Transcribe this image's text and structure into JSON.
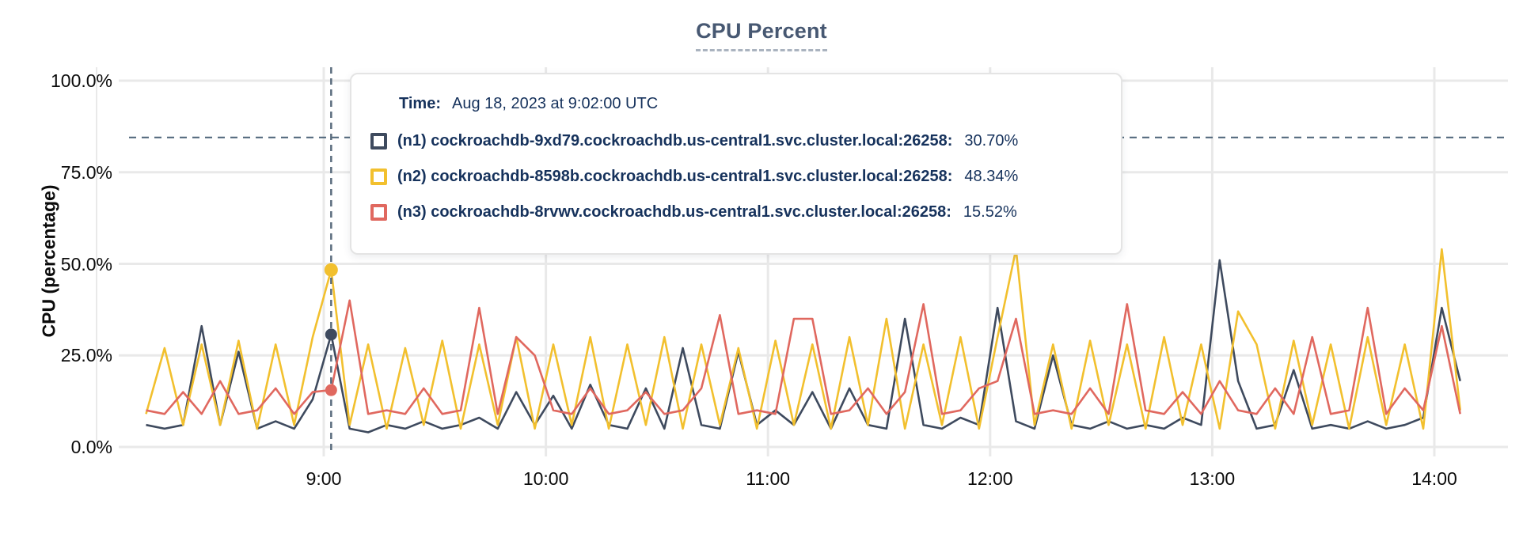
{
  "title": "CPU Percent",
  "y_axis_title": "CPU (percentage)",
  "colors": {
    "n1": "#3e4a5e",
    "n2": "#f2c02e",
    "n3": "#e0685f",
    "grid": "#e9e9e9",
    "dashed_guide": "#4d6478",
    "cursor": "#5b6d7e",
    "text": "#16325c",
    "title": "#475872"
  },
  "tooltip": {
    "time_label": "Time:",
    "time_value": "Aug 18, 2023 at 9:02:00 UTC",
    "rows": [
      {
        "label": "(n1) cockroachdb-9xd79.cockroachdb.us-central1.svc.cluster.local:26258:",
        "value": "30.70%",
        "color": "#3e4a5e"
      },
      {
        "label": "(n2) cockroachdb-8598b.cockroachdb.us-central1.svc.cluster.local:26258:",
        "value": "48.34%",
        "color": "#f2c02e"
      },
      {
        "label": "(n3) cockroachdb-8rvwv.cockroachdb.us-central1.svc.cluster.local:26258:",
        "value": "15.52%",
        "color": "#e0685f"
      }
    ]
  },
  "chart_data": {
    "type": "line",
    "title": "CPU Percent",
    "xlabel": "",
    "ylabel": "CPU (percentage)",
    "ylim": [
      0,
      100
    ],
    "grid": true,
    "legend_position": "tooltip-overlay",
    "y_ticks": [
      "0.0%",
      "25.0%",
      "50.0%",
      "75.0%",
      "100.0%"
    ],
    "y_tick_values": [
      0,
      25,
      50,
      75,
      100
    ],
    "x_ticks": [
      "9:00",
      "10:00",
      "11:00",
      "12:00",
      "13:00",
      "14:00"
    ],
    "x_tick_hours": [
      9,
      10,
      11,
      12,
      13,
      14
    ],
    "x_range_hours": [
      8.2,
      14.117
    ],
    "sample_start_hour": 8.2,
    "sample_step_minutes": 5,
    "threshold_percent": 84.5,
    "cursor": {
      "time": "Aug 18, 2023 at 9:02:00 UTC",
      "hour": 9.0333,
      "values": {
        "n1": 30.7,
        "n2": 48.34,
        "n3": 15.52
      }
    },
    "series": [
      {
        "id": "n1",
        "name": "(n1) cockroachdb-9xd79.cockroachdb.us-central1.svc.cluster.local:26258",
        "color": "#3e4a5e",
        "values": [
          6,
          5,
          6,
          33,
          6,
          26,
          5,
          7,
          5,
          13,
          30.7,
          5,
          4,
          6,
          5,
          7,
          5,
          6,
          8,
          5,
          15,
          6,
          14,
          5,
          17,
          6,
          5,
          16,
          5,
          27,
          6,
          5,
          26,
          6,
          10,
          6,
          15,
          5,
          16,
          6,
          5,
          35,
          6,
          5,
          8,
          6,
          38,
          7,
          5,
          25,
          6,
          5,
          7,
          5,
          6,
          5,
          8,
          6,
          51,
          18,
          5,
          6,
          21,
          5,
          6,
          5,
          7,
          5,
          6,
          8,
          38,
          18
        ]
      },
      {
        "id": "n2",
        "name": "(n2) cockroachdb-8598b.cockroachdb.us-central1.svc.cluster.local:26258",
        "color": "#f2c02e",
        "values": [
          9,
          27,
          6,
          28,
          6,
          29,
          5,
          28,
          6,
          30,
          48.34,
          6,
          28,
          5,
          27,
          6,
          29,
          5,
          28,
          6,
          30,
          5,
          28,
          6,
          30,
          5,
          28,
          6,
          30,
          5,
          28,
          6,
          27,
          5,
          29,
          6,
          28,
          5,
          30,
          6,
          35,
          5,
          28,
          6,
          30,
          5,
          30,
          54,
          6,
          28,
          5,
          29,
          6,
          28,
          5,
          30,
          6,
          28,
          5,
          37,
          28,
          5,
          29,
          6,
          28,
          5,
          30,
          6,
          28,
          5,
          54,
          10
        ]
      },
      {
        "id": "n3",
        "name": "(n3) cockroachdb-8rvwv.cockroachdb.us-central1.svc.cluster.local:26258",
        "color": "#e0685f",
        "values": [
          10,
          9,
          15,
          9,
          18,
          9,
          10,
          16,
          9,
          15,
          15.52,
          40,
          9,
          10,
          9,
          16,
          9,
          10,
          38,
          9,
          30,
          25,
          10,
          9,
          16,
          9,
          10,
          15,
          9,
          10,
          16,
          36,
          9,
          10,
          9,
          35,
          35,
          9,
          10,
          16,
          9,
          15,
          39,
          9,
          10,
          16,
          18,
          35,
          9,
          10,
          9,
          16,
          9,
          39,
          10,
          9,
          15,
          9,
          18,
          10,
          9,
          16,
          9,
          30,
          9,
          10,
          38,
          9,
          16,
          10,
          33,
          9
        ]
      }
    ]
  }
}
